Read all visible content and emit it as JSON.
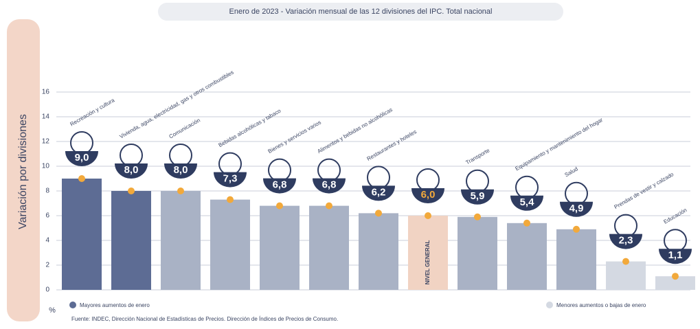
{
  "chart_data": {
    "type": "bar",
    "title": "Enero de 2023 - Variación mensual de las 12 divisiones del IPC. Total nacional",
    "y_label": "Variación por divisiones",
    "unit": "%",
    "categories": [
      "Recreación y cultura",
      "Vivienda, agua, electricidad, gas y otros combustibles",
      "Comunicación",
      "Bebidas alcohólicas y tabaco",
      "Bienes y servicios varios",
      "Alimentos y bebidas no alcohólicas",
      "Restaurantes y hoteles",
      "NIVEL GENERAL",
      "Transporte",
      "Equipamiento y mantenimiento del hogar",
      "Salud",
      "Prendas de vestir y calzado",
      "Educación"
    ],
    "values": [
      9.0,
      8.0,
      8.0,
      7.3,
      6.8,
      6.8,
      6.2,
      6.0,
      5.9,
      5.4,
      4.9,
      2.3,
      1.1
    ],
    "value_labels": [
      "9,0",
      "8,0",
      "8,0",
      "7,3",
      "6,8",
      "6,8",
      "6,2",
      "6,0",
      "5,9",
      "5,4",
      "4,9",
      "2,3",
      "1,1"
    ],
    "colors": [
      "#5d6c94",
      "#5d6c94",
      "#a9b2c5",
      "#a9b2c5",
      "#a9b2c5",
      "#a9b2c5",
      "#a9b2c5",
      "#f1d3c3",
      "#a9b2c5",
      "#a9b2c5",
      "#a9b2c5",
      "#d4d9e2",
      "#d4d9e2"
    ],
    "label_inside": [
      false,
      false,
      false,
      false,
      false,
      false,
      false,
      true,
      false,
      false,
      false,
      false,
      false
    ],
    "ylim": [
      0,
      16
    ],
    "yticks": [
      0,
      2,
      4,
      6,
      8,
      10,
      12,
      14,
      16
    ],
    "grid": true,
    "legend": [
      {
        "name": "Mayores aumentos de enero",
        "color": "#5d6c94"
      },
      {
        "name": "Menores aumentos o bajas de enero",
        "color": "#d4d9e2"
      }
    ],
    "source": "Fuente: INDEC, Dirección Nacional de Estadísticas de Precios. Dirección de Índices de Precios de Consumo."
  }
}
